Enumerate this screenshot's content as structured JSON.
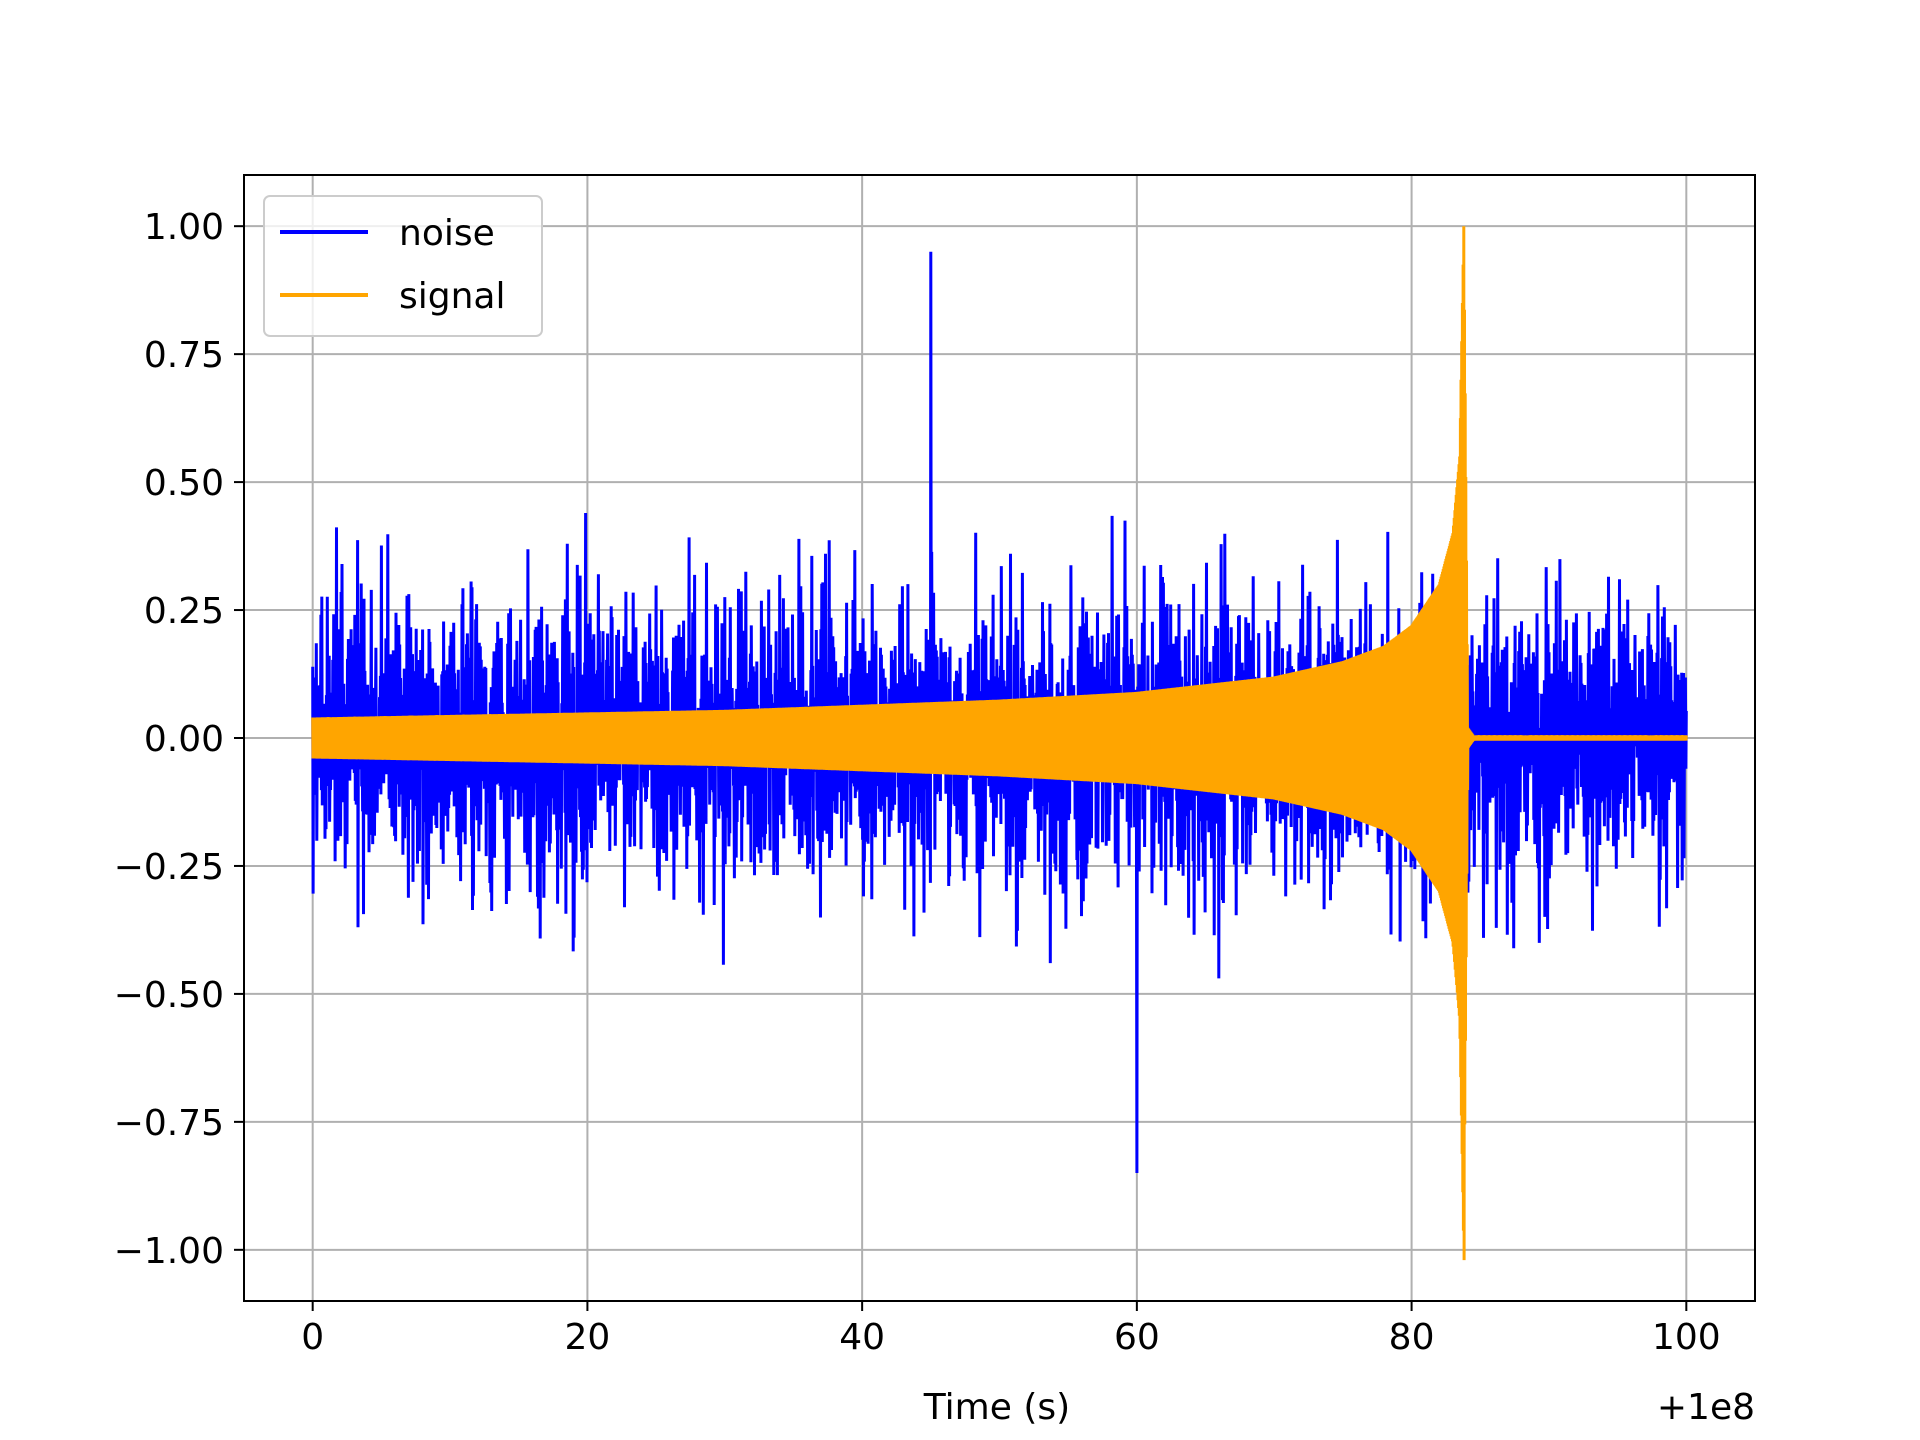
{
  "chart_data": {
    "type": "line",
    "title": "",
    "xlabel": "Time (s)",
    "ylabel": "",
    "x_offset_label": "+1e8",
    "xlim": [
      -5,
      105
    ],
    "ylim": [
      -1.1,
      1.1
    ],
    "x_ticks": [
      0,
      20,
      40,
      60,
      80,
      100
    ],
    "x_tick_labels": [
      "0",
      "20",
      "40",
      "60",
      "80",
      "100"
    ],
    "y_ticks": [
      1.0,
      0.75,
      0.5,
      0.25,
      0.0,
      -0.25,
      -0.5,
      -0.75,
      -1.0
    ],
    "y_tick_labels": [
      "1.00",
      "0.75",
      "0.50",
      "0.25",
      "0.00",
      "−0.25",
      "−0.50",
      "−0.75",
      "−1.00"
    ],
    "grid": true,
    "legend_position": "top-left",
    "series": [
      {
        "name": "noise",
        "color": "#0000ff",
        "x_range": [
          0,
          100
        ],
        "typical_amplitude": 0.5,
        "peak_max": 1.0,
        "peak_min": -0.85
      },
      {
        "name": "signal",
        "color": "#ffa500",
        "envelope_x": [
          0,
          10,
          20,
          30,
          40,
          50,
          60,
          65,
          70,
          75,
          78,
          80,
          82,
          83,
          83.5,
          83.8,
          84.1,
          84.5,
          100
        ],
        "envelope_y": [
          0.04,
          0.045,
          0.05,
          0.055,
          0.065,
          0.075,
          0.09,
          0.105,
          0.12,
          0.15,
          0.18,
          0.22,
          0.3,
          0.4,
          0.55,
          1.0,
          0.02,
          0.005,
          0.005
        ],
        "peak_max": 1.0,
        "peak_min": -1.02
      }
    ]
  }
}
